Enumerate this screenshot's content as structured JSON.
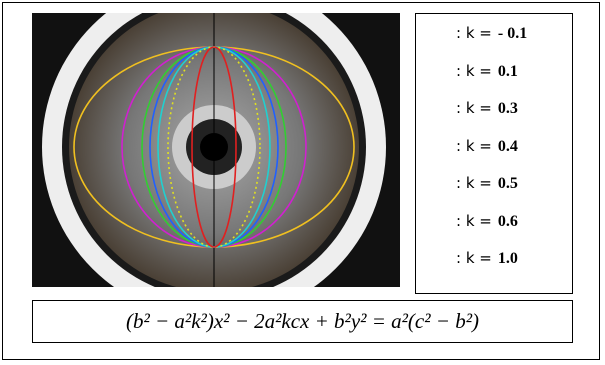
{
  "legend": {
    "entries": [
      {
        "label": ": k =",
        "value": "- 0.1"
      },
      {
        "label": ": k =",
        "value": "0.1"
      },
      {
        "label": ": k =",
        "value": "0.3"
      },
      {
        "label": ": k =",
        "value": "0.4"
      },
      {
        "label": ": k =",
        "value": "0.5"
      },
      {
        "label": ": k =",
        "value": "0.6"
      },
      {
        "label": ": k =",
        "value": "1.0"
      }
    ]
  },
  "equation": "(b² − a²k²)x² − 2a²kcx + b²y² = a²(c² − b²)"
}
